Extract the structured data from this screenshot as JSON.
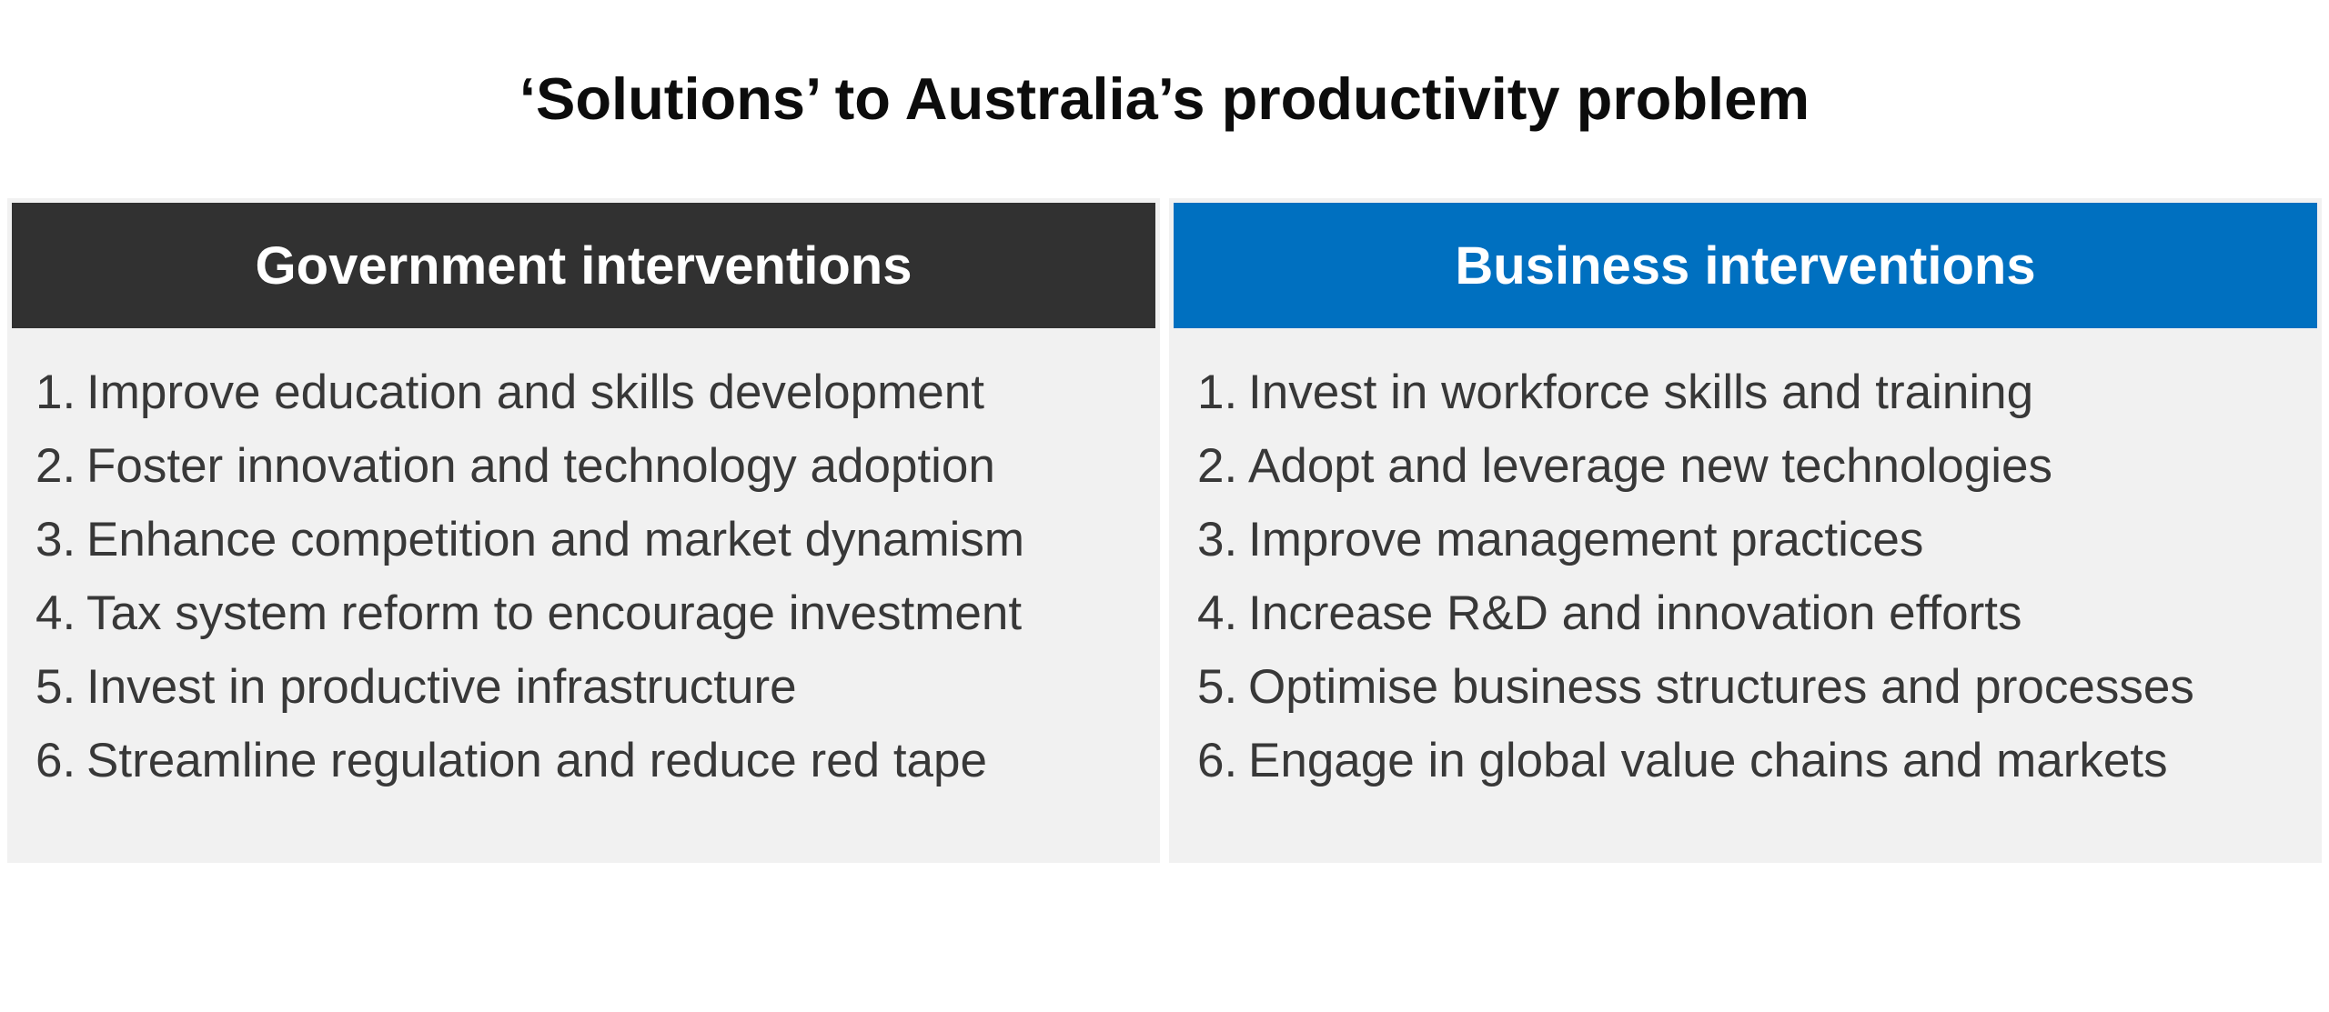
{
  "page": {
    "title": "‘Solutions’ to Australia’s productivity problem"
  },
  "colors": {
    "page_bg": "#ffffff",
    "title_text": "#0c0c0c",
    "panel_bg": "#f1f1f1",
    "government_header_bg": "#313131",
    "business_header_bg": "#0070c0",
    "header_text": "#ffffff",
    "item_text": "#383838"
  },
  "columns": [
    {
      "header": "Government interventions",
      "items": [
        {
          "num": "1.",
          "text": "Improve education and skills development"
        },
        {
          "num": "2.",
          "text": "Foster innovation and technology adoption"
        },
        {
          "num": "3.",
          "text": "Enhance competition and market dynamism"
        },
        {
          "num": "4.",
          "text": "Tax system reform to encourage investment"
        },
        {
          "num": "5.",
          "text": "Invest in productive infrastructure"
        },
        {
          "num": "6.",
          "text": "Streamline regulation and reduce red tape"
        }
      ]
    },
    {
      "header": "Business interventions",
      "items": [
        {
          "num": "1.",
          "text": "Invest in workforce skills and training"
        },
        {
          "num": "2.",
          "text": "Adopt and leverage new technologies"
        },
        {
          "num": "3.",
          "text": "Improve management practices"
        },
        {
          "num": "4.",
          "text": "Increase R&D and innovation efforts"
        },
        {
          "num": "5.",
          "text": "Optimise business structures and processes"
        },
        {
          "num": "6.",
          "text": "Engage in global value chains and markets"
        }
      ]
    }
  ]
}
